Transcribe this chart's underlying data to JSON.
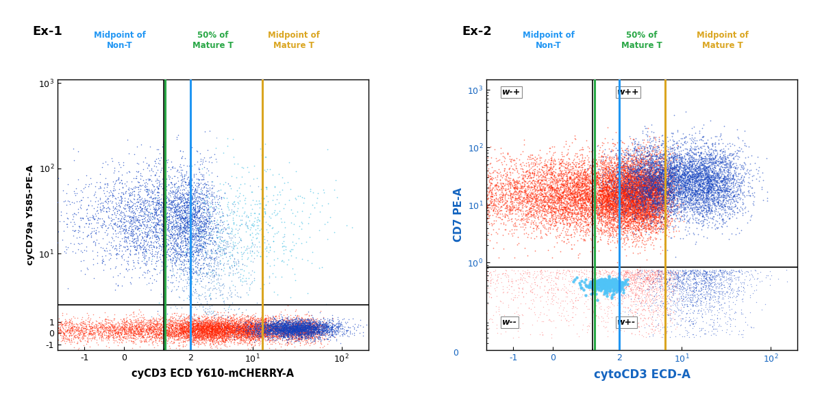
{
  "fig_width": 12.0,
  "fig_height": 5.81,
  "dpi": 100,
  "background_color": "#ffffff",
  "ex1": {
    "label": "Ex-1",
    "xlabel": "cyCD3 ECD Y610-mCHERRY-A",
    "ylabel": "cyCD79a Y585-PE-A",
    "xlabel_color": "#000000",
    "ylabel_color": "#000000",
    "hline_y": 2.5,
    "vline_x_black": 1.0,
    "blue_vline": 2.0,
    "green_vline": 1.05,
    "gold_vline": 13.0,
    "annot_nonT": {
      "text": "Midpoint of\nNon-T",
      "color": "#2196F3"
    },
    "annot_50pct": {
      "text": "50% of\nMature T",
      "color": "#28A745"
    },
    "annot_matureT": {
      "text": "Midpoint of\nMature T",
      "color": "#DAA520"
    }
  },
  "ex2": {
    "label": "Ex-2",
    "xlabel": "cytoCD3 ECD-A",
    "ylabel": "CD7 PE-A",
    "xlabel_color": "#1565C0",
    "ylabel_color": "#1565C0",
    "hline_y": 0.82,
    "vline_x_black": 1.0,
    "blue_vline": 2.0,
    "green_vline": 1.05,
    "gold_vline": 6.5,
    "annot_nonT": {
      "text": "Midpoint of\nNon-T",
      "color": "#2196F3"
    },
    "annot_50pct": {
      "text": "50% of\nMature T",
      "color": "#28A745"
    },
    "annot_matureT": {
      "text": "Midpoint of\nMature T",
      "color": "#DAA520"
    },
    "ql_wmp": {
      "text": "w-+",
      "xi": 0,
      "yi": 1
    },
    "ql_wpp": {
      "text": "w++",
      "xi": 1,
      "yi": 1
    },
    "ql_wmm": {
      "text": "w--",
      "xi": 0,
      "yi": 0
    },
    "ql_wpm": {
      "text": "w+-",
      "xi": 1,
      "yi": 0
    }
  }
}
